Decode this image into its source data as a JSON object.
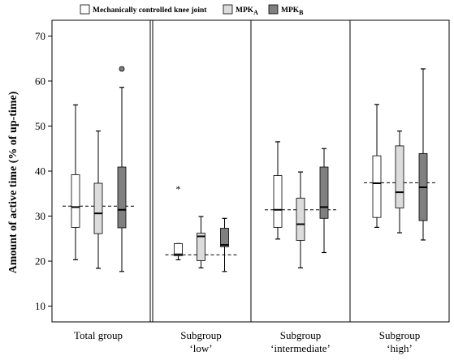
{
  "chart_data": {
    "type": "boxplot",
    "ylabel": "Amount of active time (% of up-time)",
    "ylim": [
      6.5,
      73.5
    ],
    "yticks": [
      10,
      20,
      30,
      40,
      50,
      60,
      70
    ],
    "legend": {
      "placement": "top",
      "entries": [
        {
          "key": "mck",
          "label": "Mechanically controlled knee joint",
          "sub": "",
          "color": "#ffffff"
        },
        {
          "key": "mpka",
          "label": "MPK",
          "sub": "A",
          "color": "#dcdcdc"
        },
        {
          "key": "mpkb",
          "label": "MPK",
          "sub": "B",
          "color": "#808080"
        }
      ]
    },
    "groups": [
      {
        "label_lines": [
          "Total group"
        ],
        "mean_line": 32.2,
        "boxes": [
          {
            "series": "mck",
            "min": 20.3,
            "q1": 27.5,
            "median": 32.0,
            "q3": 39.2,
            "max": 54.7,
            "outliers": []
          },
          {
            "series": "mpka",
            "min": 18.4,
            "q1": 26.1,
            "median": 30.6,
            "q3": 37.3,
            "max": 48.9,
            "outliers": []
          },
          {
            "series": "mpkb",
            "min": 17.7,
            "q1": 27.4,
            "median": 31.4,
            "q3": 40.9,
            "max": 58.6,
            "outliers": [
              {
                "y": 62.7,
                "marker": "circle"
              }
            ]
          }
        ]
      },
      {
        "label_lines": [
          "Subgroup",
          "‘low’"
        ],
        "mean_line": 21.4,
        "boxes": [
          {
            "series": "mck",
            "min": 20.3,
            "q1": 21.2,
            "median": 21.5,
            "q3": 23.9,
            "max": 23.9,
            "outliers": [
              {
                "y": 36.2,
                "marker": "star"
              }
            ]
          },
          {
            "series": "mpka",
            "min": 18.5,
            "q1": 20.1,
            "median": 25.5,
            "q3": 26.2,
            "max": 29.9,
            "outliers": []
          },
          {
            "series": "mpkb",
            "min": 17.7,
            "q1": 23.2,
            "median": 23.6,
            "q3": 27.3,
            "max": 29.5,
            "outliers": []
          }
        ]
      },
      {
        "label_lines": [
          "Subgroup",
          "‘intermediate’"
        ],
        "mean_line": 31.4,
        "boxes": [
          {
            "series": "mck",
            "min": 24.9,
            "q1": 27.5,
            "median": 31.4,
            "q3": 39.0,
            "max": 46.5,
            "outliers": []
          },
          {
            "series": "mpka",
            "min": 18.5,
            "q1": 24.6,
            "median": 28.2,
            "q3": 34.0,
            "max": 39.8,
            "outliers": []
          },
          {
            "series": "mpkb",
            "min": 21.9,
            "q1": 29.5,
            "median": 32.0,
            "q3": 40.9,
            "max": 45.0,
            "outliers": []
          }
        ]
      },
      {
        "label_lines": [
          "Subgroup",
          "‘high’"
        ],
        "mean_line": 37.4,
        "boxes": [
          {
            "series": "mck",
            "min": 27.5,
            "q1": 29.7,
            "median": 37.3,
            "q3": 43.4,
            "max": 54.8,
            "outliers": []
          },
          {
            "series": "mpka",
            "min": 26.3,
            "q1": 31.8,
            "median": 35.3,
            "q3": 45.6,
            "max": 48.9,
            "outliers": []
          },
          {
            "series": "mpkb",
            "min": 24.7,
            "q1": 29.0,
            "median": 36.4,
            "q3": 43.9,
            "max": 62.7,
            "outliers": []
          }
        ]
      }
    ]
  }
}
